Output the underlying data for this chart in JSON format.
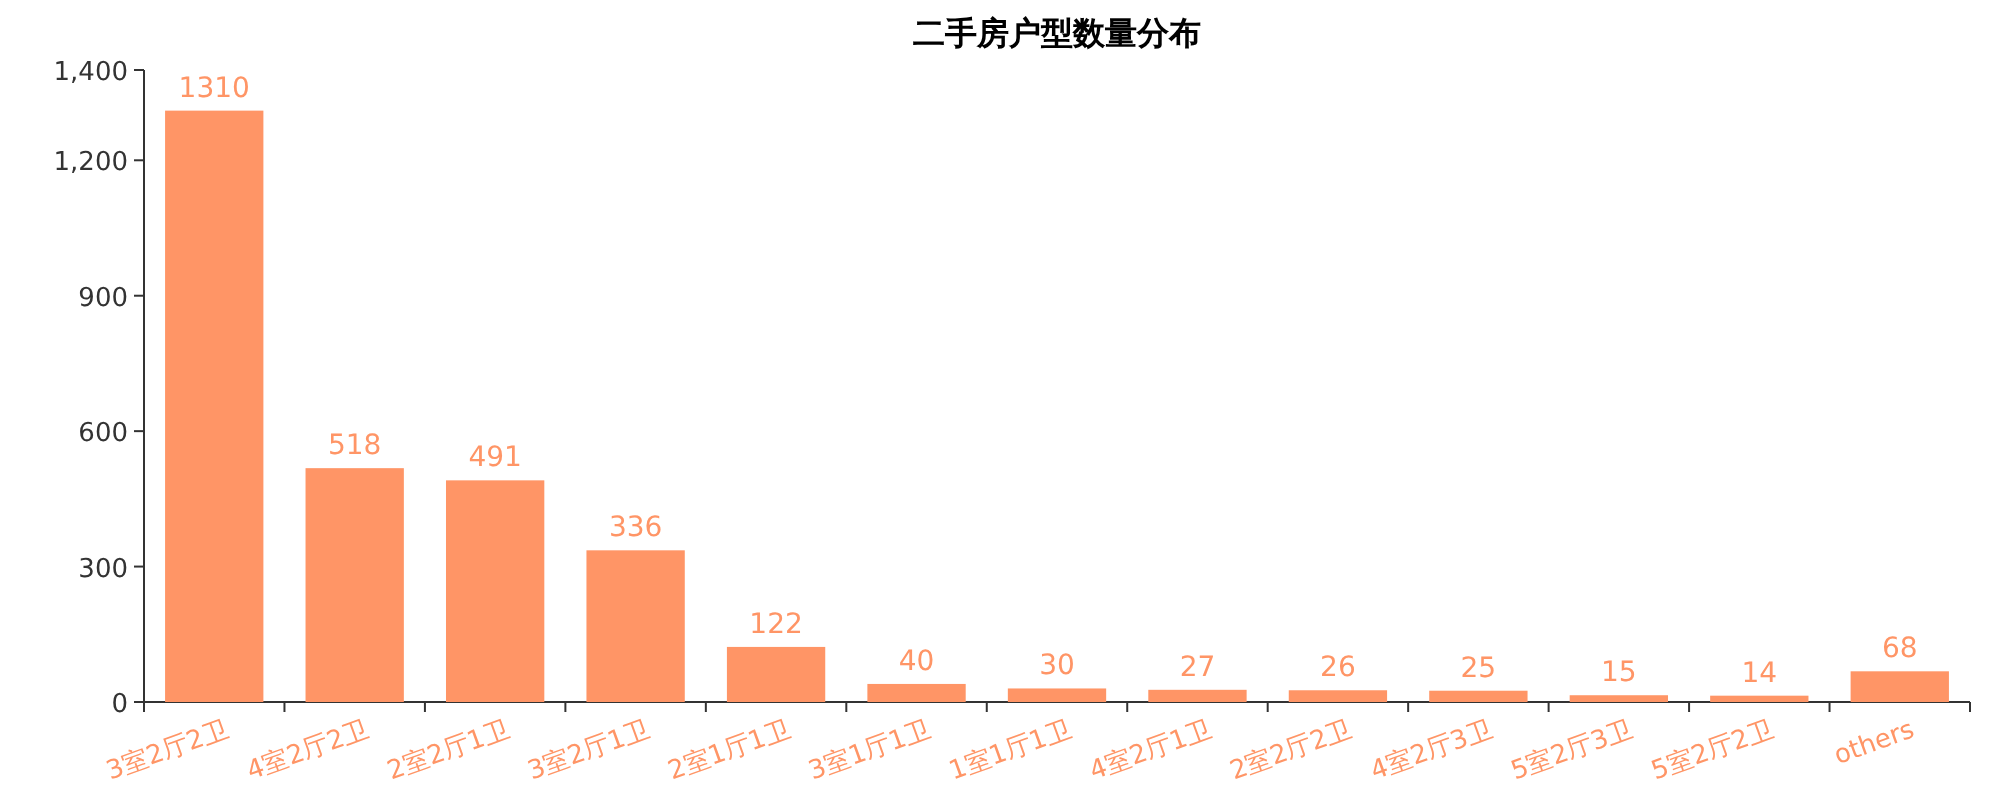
{
  "chart_data": {
    "type": "bar",
    "title": "二手房户型数量分布",
    "categories": [
      "3室2厅2卫",
      "4室2厅2卫",
      "2室2厅1卫",
      "3室2厅1卫",
      "2室1厅1卫",
      "3室1厅1卫",
      "1室1厅1卫",
      "4室2厅1卫",
      "2室2厅2卫",
      "4室2厅3卫",
      "5室2厅3卫",
      "5室2厅2卫",
      "others"
    ],
    "values": [
      1310,
      518,
      491,
      336,
      122,
      40,
      30,
      27,
      26,
      25,
      15,
      14,
      68
    ],
    "color": "#ff9566",
    "ylim": [
      0,
      1400
    ],
    "yticks": [
      0,
      300,
      600,
      900,
      {
        "value": 1200,
        "label": "1,200"
      },
      {
        "value": 1400,
        "label": "1,400"
      }
    ],
    "data_labels": true,
    "grid": false
  }
}
